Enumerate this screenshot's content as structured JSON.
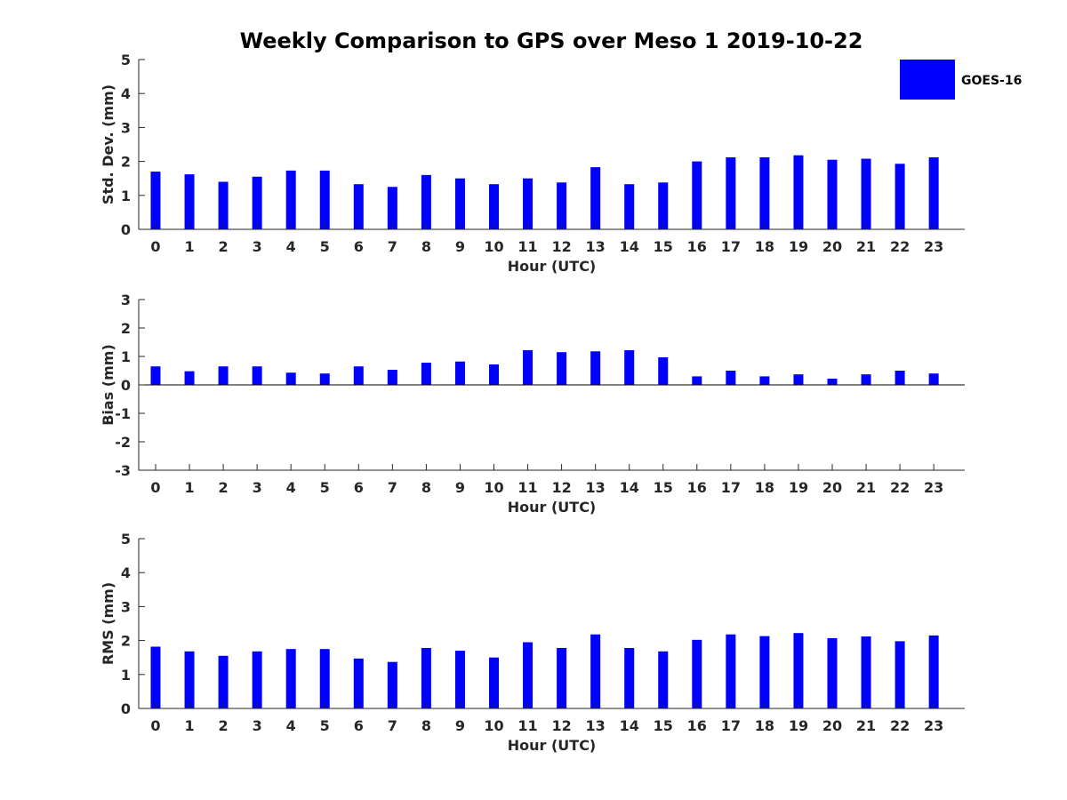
{
  "title": "Weekly Comparison to GPS over Meso 1 2019-10-22",
  "legend": {
    "label": "GOES-16",
    "color": "#0000ff"
  },
  "chart_data": [
    {
      "type": "bar",
      "id": "std",
      "series_name": "GOES-16",
      "categories": [
        "0",
        "1",
        "2",
        "3",
        "4",
        "5",
        "6",
        "7",
        "8",
        "9",
        "10",
        "11",
        "12",
        "13",
        "14",
        "15",
        "16",
        "17",
        "18",
        "19",
        "20",
        "21",
        "22",
        "23"
      ],
      "values": [
        1.7,
        1.62,
        1.4,
        1.55,
        1.73,
        1.73,
        1.33,
        1.25,
        1.6,
        1.5,
        1.33,
        1.5,
        1.38,
        1.83,
        1.33,
        1.38,
        2.0,
        2.12,
        2.12,
        2.18,
        2.05,
        2.08,
        1.93,
        2.12
      ],
      "xlabel": "Hour (UTC)",
      "ylabel": "Std. Dev. (mm)",
      "ylim": [
        0,
        5
      ],
      "yticks": [
        "0",
        "1",
        "2",
        "3",
        "4",
        "5"
      ],
      "grid": false
    },
    {
      "type": "bar",
      "id": "bias",
      "series_name": "GOES-16",
      "categories": [
        "0",
        "1",
        "2",
        "3",
        "4",
        "5",
        "6",
        "7",
        "8",
        "9",
        "10",
        "11",
        "12",
        "13",
        "14",
        "15",
        "16",
        "17",
        "18",
        "19",
        "20",
        "21",
        "22",
        "23"
      ],
      "values": [
        0.65,
        0.48,
        0.65,
        0.65,
        0.43,
        0.4,
        0.65,
        0.53,
        0.78,
        0.82,
        0.72,
        1.22,
        1.15,
        1.18,
        1.22,
        0.97,
        0.3,
        0.5,
        0.3,
        0.37,
        0.22,
        0.37,
        0.5,
        0.4
      ],
      "xlabel": "Hour (UTC)",
      "ylabel": "Bias (mm)",
      "ylim": [
        -3,
        3
      ],
      "yticks": [
        "-3",
        "-2",
        "-1",
        "0",
        "1",
        "2",
        "3"
      ],
      "grid": false
    },
    {
      "type": "bar",
      "id": "rms",
      "series_name": "GOES-16",
      "categories": [
        "0",
        "1",
        "2",
        "3",
        "4",
        "5",
        "6",
        "7",
        "8",
        "9",
        "10",
        "11",
        "12",
        "13",
        "14",
        "15",
        "16",
        "17",
        "18",
        "19",
        "20",
        "21",
        "22",
        "23"
      ],
      "values": [
        1.82,
        1.68,
        1.55,
        1.68,
        1.75,
        1.75,
        1.47,
        1.37,
        1.78,
        1.7,
        1.5,
        1.95,
        1.78,
        2.18,
        1.78,
        1.68,
        2.02,
        2.18,
        2.13,
        2.22,
        2.07,
        2.12,
        1.98,
        2.15
      ],
      "xlabel": "Hour (UTC)",
      "ylabel": "RMS (mm)",
      "ylim": [
        0,
        5
      ],
      "yticks": [
        "0",
        "1",
        "2",
        "3",
        "4",
        "5"
      ],
      "grid": false
    }
  ]
}
